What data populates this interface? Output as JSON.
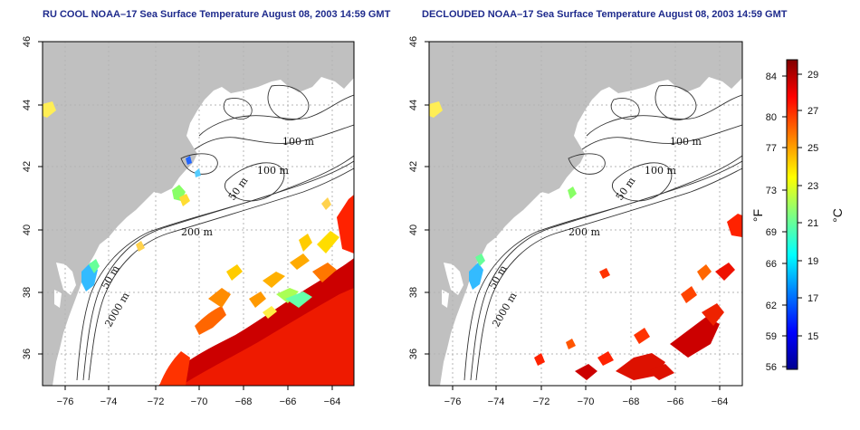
{
  "titles": {
    "left": "RU COOL NOAA–17 Sea Surface Temperature August 08, 2003 14:59 GMT",
    "right": "DECLOUDED NOAA–17 Sea Surface Temperature August 08, 2003 14:59 GMT"
  },
  "map": {
    "lon_ticks": [
      "−76",
      "−74",
      "−72",
      "−70",
      "−68",
      "−66",
      "−64"
    ],
    "lat_ticks": [
      "36",
      "38",
      "40",
      "42",
      "44",
      "46"
    ],
    "contour_labels": [
      "100 m",
      "100 m",
      "50 m",
      "200 m",
      "50 m",
      "2000 m"
    ]
  },
  "colorbar": {
    "fahrenheit_ticks": [
      "84",
      "80",
      "77",
      "73",
      "69",
      "66",
      "62",
      "59",
      "56"
    ],
    "celsius_ticks": [
      "29",
      "27",
      "25",
      "23",
      "21",
      "19",
      "17",
      "15"
    ],
    "fahrenheit_unit": "°F",
    "celsius_unit": "°C",
    "colors": [
      "#00008f",
      "#0000ff",
      "#0080ff",
      "#00ffff",
      "#80ff80",
      "#ffff00",
      "#ff8000",
      "#ff0000",
      "#800000"
    ]
  },
  "colors": {
    "land": "#c0c0c0",
    "ocean": "#ffffff",
    "grid": "#b4b4b4",
    "title": "#1e2a8c"
  }
}
